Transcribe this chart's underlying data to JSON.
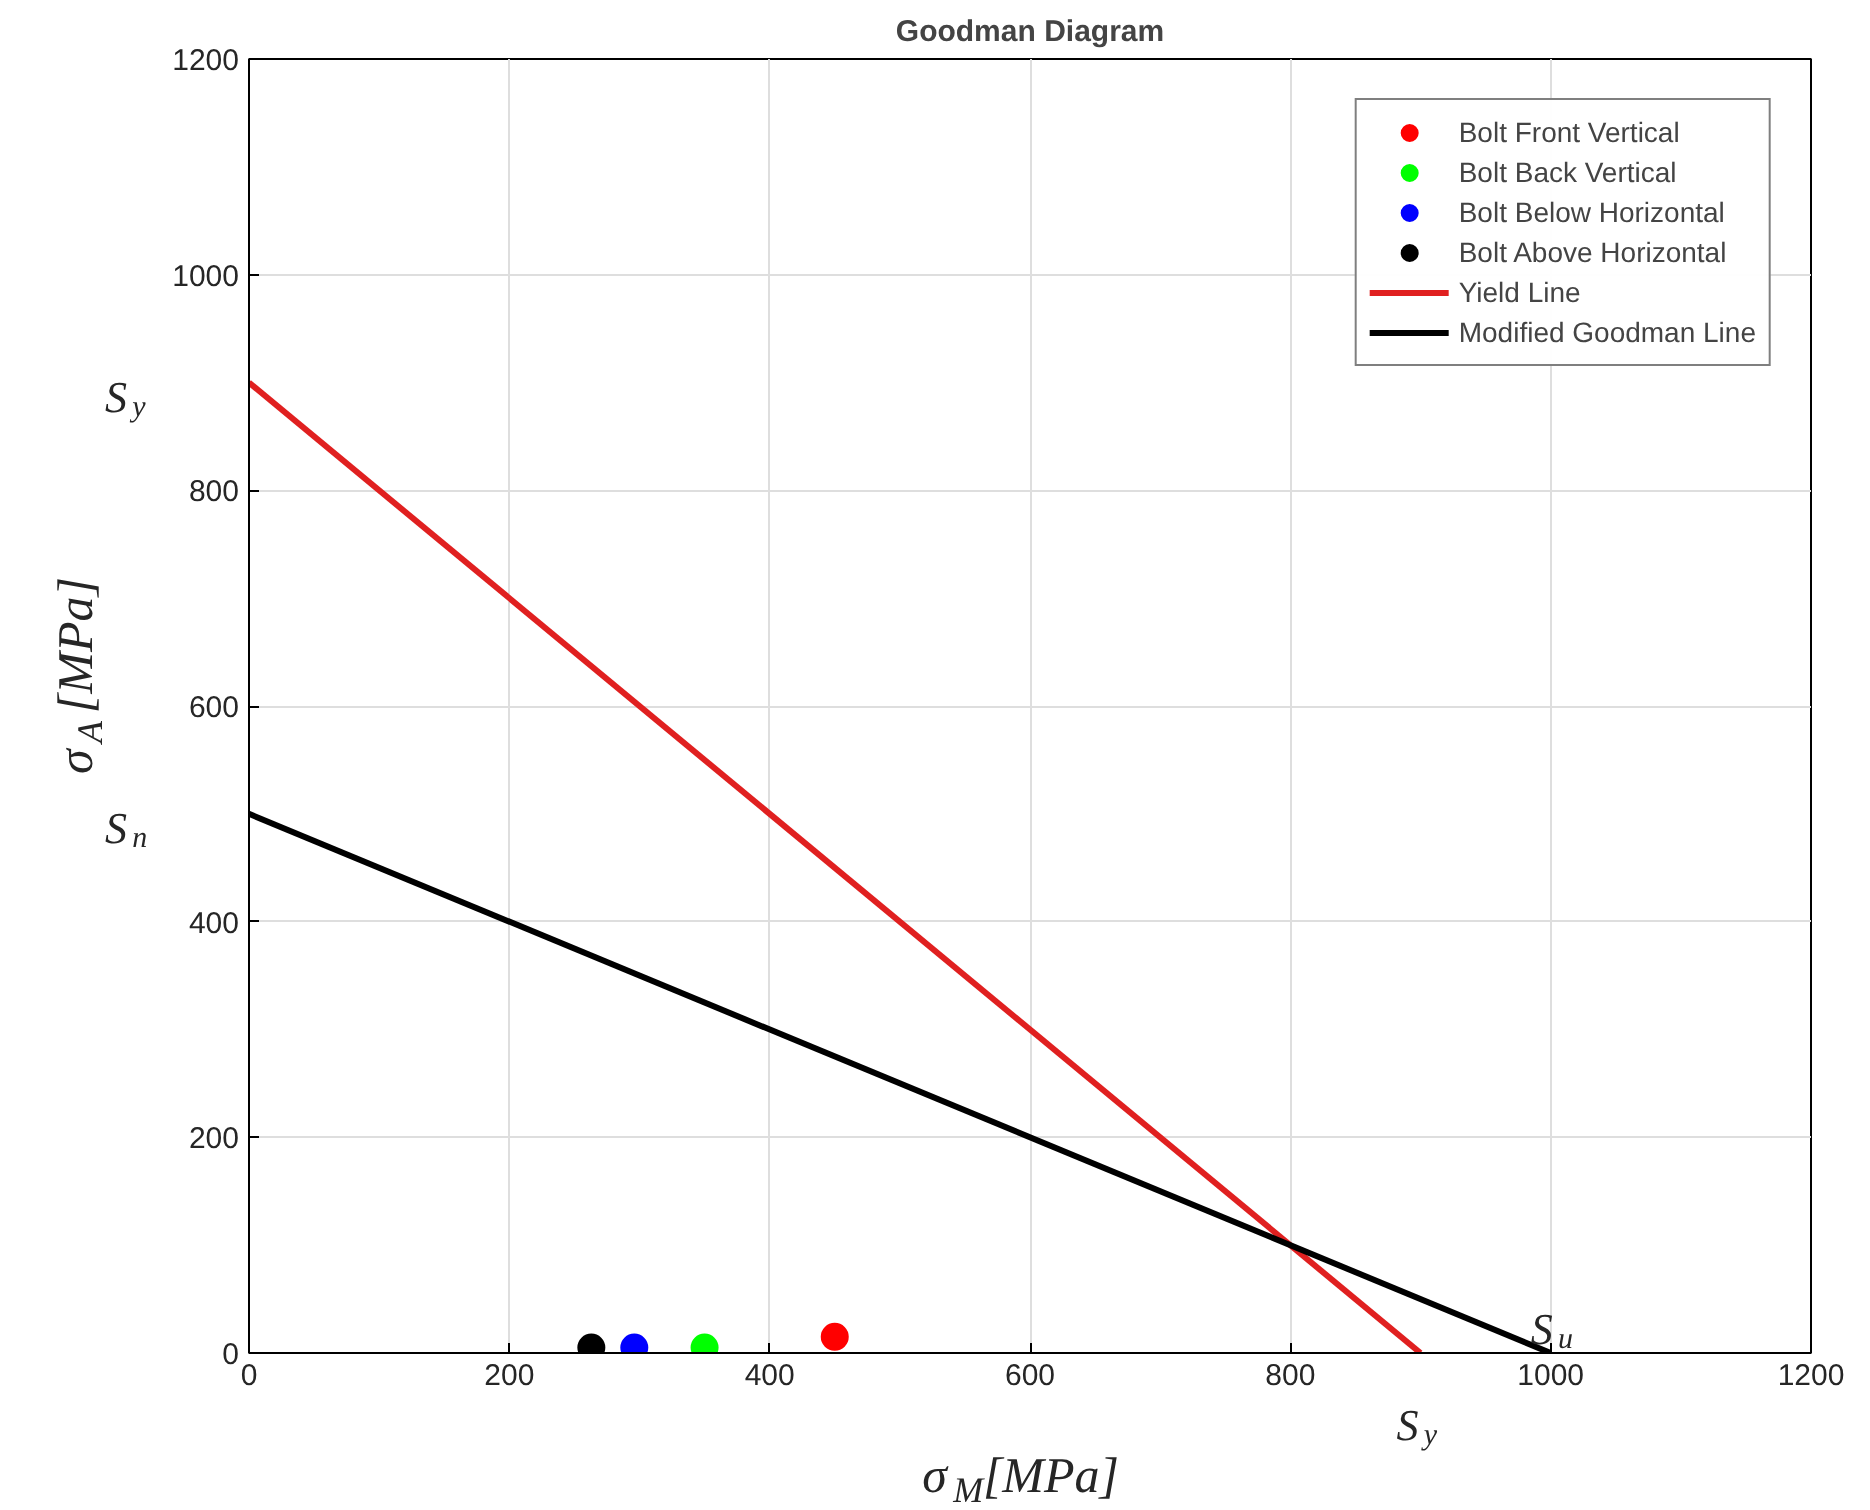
{
  "chart_data": {
    "type": "scatter",
    "title": "Goodman Diagram",
    "xlabel": "σ$_{M}$[MPa]",
    "ylabel": "σ$_{A}$[MPa]",
    "xlim": [
      0,
      1200
    ],
    "ylim": [
      0,
      1200
    ],
    "xticks": [
      0,
      200,
      400,
      600,
      800,
      1000,
      1200
    ],
    "yticks": [
      0,
      200,
      400,
      600,
      800,
      1000,
      1200
    ],
    "grid": true,
    "legend": "top right",
    "marker": "circle",
    "series": [
      {
        "name": "Bolt Front Vertical",
        "color": "#ff0000",
        "x": [
          450
        ],
        "values": [
          15
        ]
      },
      {
        "name": "Bolt Back Vertical",
        "color": "#00ff00",
        "x": [
          350
        ],
        "values": [
          5
        ]
      },
      {
        "name": "Bolt Below Horizontal",
        "color": "#0000ff",
        "x": [
          296
        ],
        "values": [
          5
        ]
      },
      {
        "name": "Bolt Above Horizontal",
        "color": "#000000",
        "x": [
          263
        ],
        "values": [
          5
        ]
      },
      {
        "name": "Yield Line",
        "type": "line",
        "marker": "none",
        "color": "#e02020",
        "x": [
          0,
          900
        ],
        "values": [
          900,
          0
        ]
      },
      {
        "name": "Modified Goodman Line",
        "type": "line",
        "marker": "none",
        "color": "#000000",
        "x": [
          0,
          1000
        ],
        "values": [
          500,
          0
        ]
      }
    ],
    "annotations": [
      {
        "text": "S$_{y}$",
        "x": 0,
        "y": 900
      },
      {
        "text": "S$_{n}$",
        "x": 0,
        "y": 500
      },
      {
        "text": "S$_{y}$",
        "x": 900,
        "y": 0
      },
      {
        "text": "S$_{u}$",
        "x": 1000,
        "y": 0
      }
    ]
  }
}
